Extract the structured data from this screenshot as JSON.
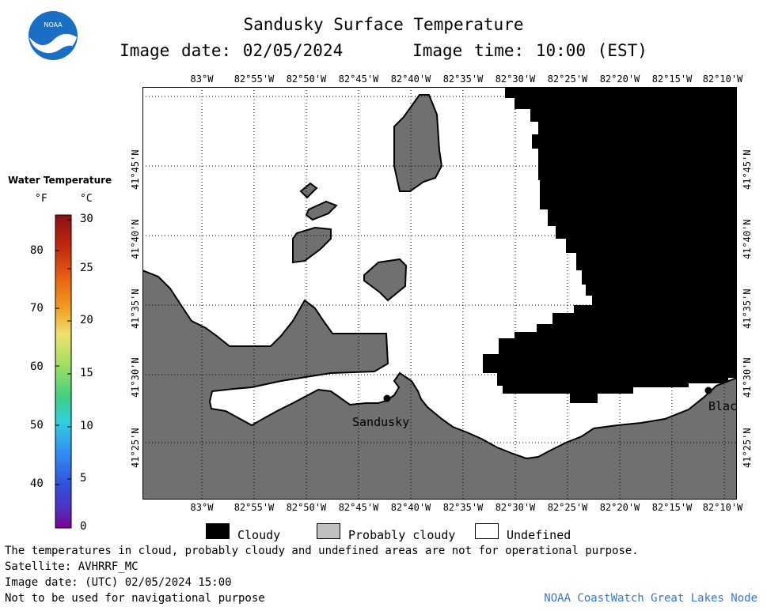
{
  "header": {
    "title": "Sandusky Surface Temperature",
    "image_date_label": "Image date: 02/05/2024",
    "image_time_label": "Image time: 10:00 (EST)"
  },
  "logo": {
    "text": "NOAA"
  },
  "map": {
    "lon_labels": [
      "83°W",
      "82°55'W",
      "82°50'W",
      "82°45'W",
      "82°40'W",
      "82°35'W",
      "82°30'W",
      "82°25'W",
      "82°20'W",
      "82°15'W",
      "82°10'W"
    ],
    "lat_labels": [
      "41°45'N",
      "41°40'N",
      "41°35'N",
      "41°30'N",
      "41°25'N"
    ],
    "places": {
      "sandusky": "Sandusky",
      "blackrock": "Blac"
    },
    "colors": {
      "land": "#707070",
      "cloudy": "#000000",
      "undefined": "#ffffff",
      "probably_cloudy": "#c0c0c0"
    }
  },
  "legend": {
    "title": "Water Temperature",
    "unit_f": "°F",
    "unit_c": "°C",
    "f_ticks": [
      "80",
      "70",
      "60",
      "50",
      "40"
    ],
    "c_ticks": [
      "30",
      "25",
      "20",
      "15",
      "10",
      "5",
      "0"
    ],
    "colorbar_colors": [
      "#a01010",
      "#d03010",
      "#f07010",
      "#f0b020",
      "#f0e060",
      "#b0e060",
      "#50d070",
      "#30d0d0",
      "#3090f0",
      "#3050e0",
      "#5030c0",
      "#700090"
    ]
  },
  "key": {
    "cloudy": "Cloudy",
    "probably_cloudy": "Probably cloudy",
    "undefined": "Undefined"
  },
  "footer": {
    "disclaimer": "The temperatures in cloud, probably cloudy and undefined areas are not for operational purpose.",
    "satellite": "Satellite: AVHRRF_MC",
    "utc_date": "Image date: (UTC) 02/05/2024  15:00",
    "nav_warning": "Not to be used for navigational purpose",
    "credit": "NOAA CoastWatch Great Lakes Node"
  }
}
